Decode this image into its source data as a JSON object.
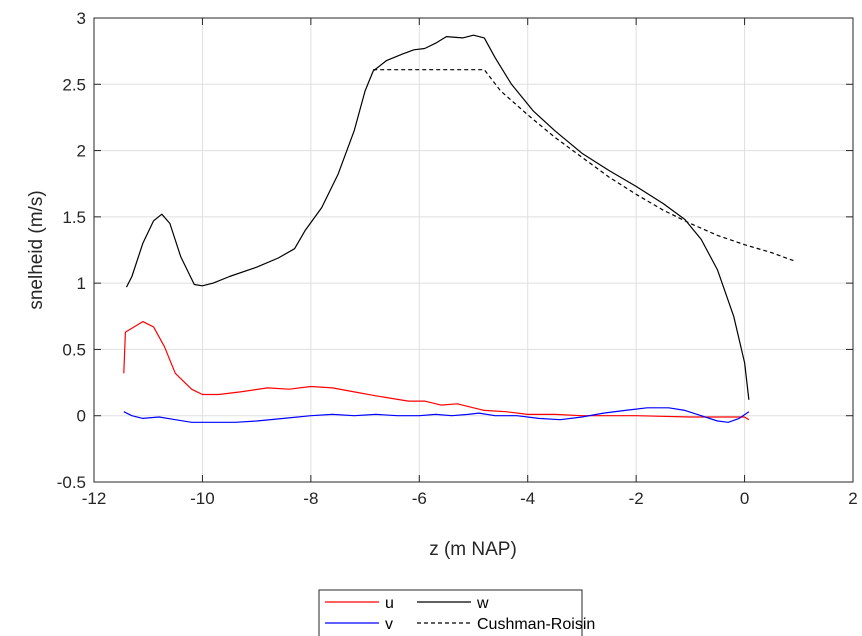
{
  "chart_data": {
    "type": "line",
    "title": "",
    "xlabel": "z (m NAP)",
    "ylabel": "snelheid (m/s)",
    "xlim": [
      -12,
      2
    ],
    "ylim": [
      -0.5,
      3
    ],
    "xticks": [
      -12,
      -10,
      -8,
      -6,
      -4,
      -2,
      0,
      2
    ],
    "xtick_labels": [
      "-12",
      "-10",
      "-8",
      "-6",
      "-4",
      "-2",
      "0",
      "2"
    ],
    "yticks": [
      -0.5,
      0,
      0.5,
      1,
      1.5,
      2,
      2.5,
      3
    ],
    "ytick_labels": [
      "-0.5",
      "0",
      "0.5",
      "1",
      "1.5",
      "2",
      "2.5",
      "3"
    ],
    "grid": true,
    "legend_placement": "bottom-outside",
    "series": [
      {
        "name": "u",
        "color": "#ff0000",
        "style": "solid",
        "points": [
          [
            -11.45,
            0.32
          ],
          [
            -11.42,
            0.63
          ],
          [
            -11.3,
            0.66
          ],
          [
            -11.1,
            0.71
          ],
          [
            -10.9,
            0.67
          ],
          [
            -10.7,
            0.52
          ],
          [
            -10.5,
            0.32
          ],
          [
            -10.2,
            0.2
          ],
          [
            -10.0,
            0.16
          ],
          [
            -9.7,
            0.16
          ],
          [
            -9.3,
            0.18
          ],
          [
            -8.8,
            0.21
          ],
          [
            -8.4,
            0.2
          ],
          [
            -8.0,
            0.22
          ],
          [
            -7.6,
            0.21
          ],
          [
            -7.2,
            0.18
          ],
          [
            -6.8,
            0.15
          ],
          [
            -6.5,
            0.13
          ],
          [
            -6.2,
            0.11
          ],
          [
            -5.9,
            0.11
          ],
          [
            -5.6,
            0.08
          ],
          [
            -5.3,
            0.09
          ],
          [
            -5.0,
            0.06
          ],
          [
            -4.8,
            0.04
          ],
          [
            -4.4,
            0.03
          ],
          [
            -4.0,
            0.01
          ],
          [
            -3.5,
            0.01
          ],
          [
            -3.0,
            0.0
          ],
          [
            -2.0,
            0.0
          ],
          [
            -1.0,
            -0.01
          ],
          [
            -0.5,
            -0.01
          ],
          [
            0.0,
            -0.01
          ],
          [
            0.08,
            -0.03
          ]
        ]
      },
      {
        "name": "w",
        "color": "#000000",
        "style": "solid",
        "points": [
          [
            -11.4,
            0.97
          ],
          [
            -11.3,
            1.05
          ],
          [
            -11.1,
            1.3
          ],
          [
            -10.9,
            1.47
          ],
          [
            -10.75,
            1.52
          ],
          [
            -10.6,
            1.45
          ],
          [
            -10.4,
            1.2
          ],
          [
            -10.15,
            0.99
          ],
          [
            -10.0,
            0.98
          ],
          [
            -9.8,
            1.0
          ],
          [
            -9.5,
            1.05
          ],
          [
            -9.0,
            1.12
          ],
          [
            -8.6,
            1.19
          ],
          [
            -8.3,
            1.26
          ],
          [
            -8.1,
            1.4
          ],
          [
            -7.8,
            1.57
          ],
          [
            -7.5,
            1.82
          ],
          [
            -7.2,
            2.15
          ],
          [
            -7.0,
            2.45
          ],
          [
            -6.85,
            2.6
          ],
          [
            -6.6,
            2.68
          ],
          [
            -6.3,
            2.73
          ],
          [
            -6.1,
            2.76
          ],
          [
            -5.9,
            2.77
          ],
          [
            -5.7,
            2.81
          ],
          [
            -5.5,
            2.86
          ],
          [
            -5.2,
            2.85
          ],
          [
            -5.0,
            2.87
          ],
          [
            -4.8,
            2.85
          ],
          [
            -4.6,
            2.7
          ],
          [
            -4.3,
            2.5
          ],
          [
            -3.9,
            2.3
          ],
          [
            -3.5,
            2.15
          ],
          [
            -3.0,
            1.98
          ],
          [
            -2.5,
            1.85
          ],
          [
            -2.0,
            1.73
          ],
          [
            -1.5,
            1.6
          ],
          [
            -1.1,
            1.48
          ],
          [
            -0.8,
            1.33
          ],
          [
            -0.5,
            1.1
          ],
          [
            -0.2,
            0.75
          ],
          [
            0.0,
            0.4
          ],
          [
            0.08,
            0.12
          ]
        ]
      },
      {
        "name": "v",
        "color": "#0000ff",
        "style": "solid",
        "points": [
          [
            -11.45,
            0.03
          ],
          [
            -11.3,
            0.0
          ],
          [
            -11.1,
            -0.02
          ],
          [
            -10.8,
            -0.01
          ],
          [
            -10.5,
            -0.03
          ],
          [
            -10.2,
            -0.05
          ],
          [
            -9.8,
            -0.05
          ],
          [
            -9.4,
            -0.05
          ],
          [
            -9.0,
            -0.04
          ],
          [
            -8.5,
            -0.02
          ],
          [
            -8.0,
            0.0
          ],
          [
            -7.6,
            0.01
          ],
          [
            -7.2,
            0.0
          ],
          [
            -6.8,
            0.01
          ],
          [
            -6.4,
            0.0
          ],
          [
            -6.0,
            0.0
          ],
          [
            -5.7,
            0.01
          ],
          [
            -5.4,
            0.0
          ],
          [
            -5.1,
            0.01
          ],
          [
            -4.9,
            0.02
          ],
          [
            -4.6,
            0.0
          ],
          [
            -4.2,
            0.0
          ],
          [
            -3.8,
            -0.02
          ],
          [
            -3.4,
            -0.03
          ],
          [
            -3.0,
            -0.01
          ],
          [
            -2.6,
            0.02
          ],
          [
            -2.2,
            0.04
          ],
          [
            -1.8,
            0.06
          ],
          [
            -1.4,
            0.06
          ],
          [
            -1.1,
            0.04
          ],
          [
            -0.8,
            0.0
          ],
          [
            -0.5,
            -0.04
          ],
          [
            -0.3,
            -0.05
          ],
          [
            -0.1,
            -0.02
          ],
          [
            0.08,
            0.03
          ]
        ]
      },
      {
        "name": "Cushman-Roisin",
        "color": "#000000",
        "style": "dashed",
        "points": [
          [
            -6.85,
            2.61
          ],
          [
            -4.8,
            2.61
          ],
          [
            -4.5,
            2.45
          ],
          [
            -4.0,
            2.27
          ],
          [
            -3.5,
            2.1
          ],
          [
            -3.0,
            1.95
          ],
          [
            -2.5,
            1.8
          ],
          [
            -2.0,
            1.67
          ],
          [
            -1.5,
            1.55
          ],
          [
            -1.0,
            1.45
          ],
          [
            -0.5,
            1.36
          ],
          [
            0.0,
            1.29
          ],
          [
            0.5,
            1.23
          ],
          [
            0.9,
            1.17
          ]
        ]
      }
    ],
    "legend_rows": [
      [
        {
          "label": "u",
          "color": "#ff0000",
          "style": "solid"
        },
        {
          "label": "w",
          "color": "#000000",
          "style": "solid"
        }
      ],
      [
        {
          "label": "v",
          "color": "#0000ff",
          "style": "solid"
        },
        {
          "label": "Cushman-Roisin",
          "color": "#000000",
          "style": "dashed"
        }
      ]
    ]
  }
}
